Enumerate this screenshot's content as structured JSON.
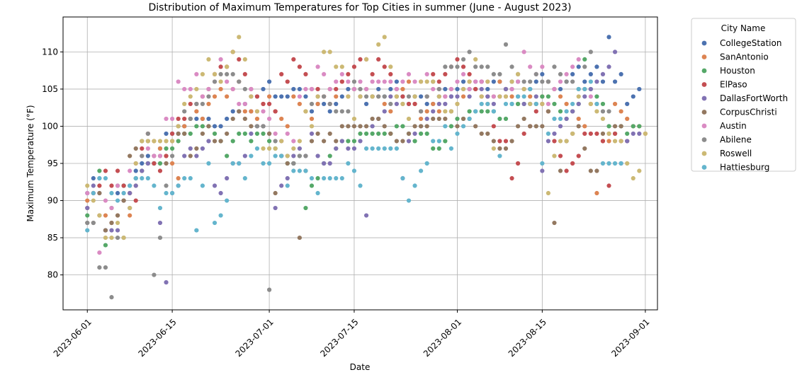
{
  "chart_data": {
    "type": "scatter",
    "title": "Distribution of Maximum Temperatures for Top Cities in summer (June - August 2023)",
    "xlabel": "Date",
    "ylabel": "Maximum Temperature (°F)",
    "xlim": [
      "2023-05-28",
      "2023-09-03"
    ],
    "ylim": [
      75.3,
      114.7
    ],
    "x_ticks": [
      "2023-06-01",
      "2023-06-15",
      "2023-07-01",
      "2023-07-15",
      "2023-08-01",
      "2023-08-15",
      "2023-09-01"
    ],
    "y_ticks": [
      80,
      85,
      90,
      95,
      100,
      105,
      110
    ],
    "grid": true,
    "legend": {
      "title": "City Name",
      "placement": "outside-top-right"
    },
    "start_date": "2023-06-01",
    "series": [
      {
        "name": "CollegeStation",
        "color": "#4c72b0",
        "values": [
          91,
          93,
          93,
          86,
          87,
          91,
          92,
          92,
          94,
          95,
          96,
          95,
          97,
          99,
          99,
          99,
          100,
          101,
          101,
          101,
          101,
          100,
          100,
          101,
          102,
          102,
          103,
          102,
          104,
          105,
          106,
          104,
          104,
          104,
          105,
          105,
          104,
          102,
          103,
          103,
          102,
          103,
          104,
          105,
          105,
          104,
          103,
          104,
          105,
          104,
          105,
          106,
          104,
          103,
          104,
          104,
          103,
          103,
          104,
          105,
          104,
          105,
          106,
          105,
          105,
          106,
          105,
          106,
          106,
          105,
          106,
          106,
          105,
          105,
          106,
          107,
          106,
          105,
          105,
          106,
          107,
          108,
          106,
          107,
          108,
          106,
          112,
          106,
          107,
          103,
          104,
          105
        ]
      },
      {
        "name": "SanAntonio",
        "color": "#dd8452",
        "values": [
          90,
          91,
          88,
          88,
          87,
          88,
          90,
          88,
          92,
          94,
          95,
          98,
          97,
          96,
          95,
          93,
          100,
          101,
          102,
          101,
          103,
          104,
          105,
          104,
          105,
          106,
          102,
          102,
          101,
          103,
          104,
          102,
          101,
          100,
          104,
          103,
          102,
          101,
          103,
          104,
          105,
          104,
          106,
          104,
          105,
          104,
          105,
          104,
          104,
          103,
          102,
          104,
          105,
          106,
          103,
          101,
          102,
          103,
          102,
          104,
          105,
          103,
          104,
          106,
          105,
          104,
          103,
          104,
          106,
          105,
          104,
          103,
          105,
          104,
          103,
          104,
          106,
          105,
          104,
          103,
          102,
          101,
          100,
          103,
          91,
          98,
          98,
          103,
          102,
          101,
          100,
          100,
          99
        ]
      },
      {
        "name": "Houston",
        "color": "#55a868",
        "values": [
          88,
          91,
          94,
          84,
          89,
          92,
          92,
          91,
          93,
          94,
          95,
          95,
          95,
          97,
          97,
          98,
          99,
          99,
          100,
          100,
          100,
          99,
          98,
          96,
          98,
          99,
          99,
          98,
          99,
          99,
          98,
          97,
          96,
          95,
          95,
          96,
          89,
          92,
          93,
          95,
          96,
          97,
          98,
          98,
          98,
          99,
          99,
          99,
          99,
          99,
          99,
          100,
          100,
          99,
          98,
          99,
          99,
          97,
          97,
          98,
          100,
          101,
          101,
          102,
          102,
          102,
          102,
          102,
          101,
          101,
          103,
          103,
          103,
          103,
          103,
          104,
          104,
          103,
          102,
          101,
          102,
          103,
          109,
          105,
          104,
          103,
          100,
          99,
          100,
          99,
          100,
          100
        ]
      },
      {
        "name": "ElPaso",
        "color": "#c44e52",
        "values": [
          89,
          91,
          92,
          94,
          92,
          94,
          92,
          91,
          90,
          97,
          99,
          95,
          94,
          96,
          99,
          101,
          101,
          103,
          103,
          104,
          105,
          107,
          108,
          108,
          110,
          109,
          107,
          105,
          104,
          103,
          103,
          102,
          107,
          106,
          109,
          108,
          107,
          105,
          105,
          104,
          103,
          105,
          106,
          107,
          108,
          109,
          109,
          107,
          109,
          108,
          107,
          105,
          104,
          103,
          103,
          102,
          104,
          107,
          106,
          107,
          108,
          109,
          108,
          107,
          105,
          106,
          104,
          100,
          98,
          98,
          93,
          95,
          99,
          100,
          102,
          103,
          102,
          98,
          96,
          94,
          95,
          96,
          99,
          99,
          99,
          98,
          92,
          99,
          98,
          98
        ]
      },
      {
        "name": "DallasFortWorth",
        "color": "#8172b3",
        "values": [
          89,
          92,
          91,
          86,
          86,
          86,
          90,
          91,
          92,
          94,
          95,
          96,
          87,
          79,
          91,
          92,
          96,
          97,
          96,
          97,
          98,
          92,
          91,
          93,
          95,
          95,
          96,
          99,
          100,
          100,
          99,
          89,
          92,
          93,
          96,
          97,
          96,
          99,
          96,
          95,
          95,
          97,
          98,
          97,
          97,
          98,
          88,
          100,
          101,
          102,
          104,
          103,
          93,
          98,
          99,
          100,
          101,
          102,
          103,
          103,
          104,
          104,
          105,
          104,
          106,
          105,
          104,
          103,
          104,
          105,
          105,
          104,
          103,
          103,
          104,
          94,
          98,
          99,
          100,
          101,
          102,
          103,
          104,
          105,
          106,
          107,
          108,
          110,
          95,
          98,
          99,
          99
        ]
      },
      {
        "name": "CorpusChristi",
        "color": "#937860",
        "values": [
          87,
          87,
          91,
          86,
          87,
          88,
          90,
          96,
          97,
          98,
          98,
          96,
          96,
          95,
          98,
          99,
          99,
          96,
          97,
          99,
          100,
          98,
          98,
          99,
          101,
          102,
          101,
          100,
          100,
          100,
          99,
          91,
          96,
          95,
          95,
          85,
          94,
          98,
          99,
          98,
          99,
          98,
          100,
          100,
          100,
          100,
          100,
          101,
          101,
          100,
          99,
          98,
          98,
          99,
          100,
          100,
          100,
          101,
          101,
          101,
          102,
          100,
          101,
          101,
          100,
          99,
          99,
          98,
          97,
          97,
          98,
          100,
          101,
          100,
          100,
          100,
          102,
          87,
          94,
          98,
          99,
          100,
          97,
          94,
          94,
          99,
          99,
          100,
          100
        ]
      },
      {
        "name": "Austin",
        "color": "#da8bc3",
        "values": [
          91,
          91,
          83,
          90,
          89,
          92,
          91,
          94,
          95,
          96,
          97,
          96,
          96,
          101,
          101,
          106,
          105,
          105,
          107,
          104,
          105,
          106,
          109,
          106,
          105,
          103,
          103,
          105,
          102,
          102,
          101,
          99,
          98,
          99,
          98,
          104,
          105,
          105,
          108,
          107,
          105,
          106,
          107,
          106,
          105,
          106,
          105,
          106,
          106,
          106,
          106,
          105,
          106,
          107,
          106,
          106,
          107,
          105,
          105,
          104,
          105,
          106,
          107,
          105,
          106,
          106,
          106,
          104,
          104,
          104,
          105,
          106,
          110,
          108,
          107,
          108,
          103,
          105,
          106,
          107,
          108,
          109,
          105,
          104
        ]
      },
      {
        "name": "Abilene",
        "color": "#8c8c8c",
        "values": [
          87,
          87,
          81,
          81,
          77,
          85,
          85,
          89,
          93,
          96,
          99,
          80,
          85,
          92,
          96,
          100,
          102,
          101,
          103,
          103,
          104,
          106,
          107,
          107,
          107,
          106,
          105,
          104,
          100,
          100,
          78,
          98,
          96,
          96,
          95,
          96,
          96,
          103,
          104,
          104,
          103,
          102,
          102,
          102,
          106,
          105,
          104,
          104,
          104,
          104,
          103,
          104,
          103,
          104,
          104,
          102,
          104,
          106,
          105,
          108,
          108,
          108,
          109,
          110,
          108,
          108,
          108,
          107,
          107,
          111,
          108,
          107,
          106,
          106,
          107,
          106,
          106,
          108,
          107,
          106,
          106,
          105,
          108,
          110,
          103,
          102,
          102
        ]
      },
      {
        "name": "Roswell",
        "color": "#ccb974",
        "values": [
          92,
          90,
          88,
          85,
          85,
          87,
          85,
          89,
          95,
          98,
          98,
          98,
          98,
          98,
          98,
          100,
          103,
          104,
          105,
          107,
          109,
          107,
          106,
          108,
          110,
          112,
          109,
          104,
          102,
          97,
          97,
          97,
          98,
          96,
          97,
          98,
          102,
          100,
          104,
          110,
          110,
          108,
          108,
          104,
          101,
          104,
          109,
          104,
          111,
          112,
          108,
          104,
          103,
          101,
          104,
          106,
          106,
          106,
          104,
          102,
          102,
          103,
          105,
          106,
          109,
          104,
          106,
          97,
          104,
          104,
          106,
          107,
          105,
          103,
          103,
          103,
          91,
          96,
          98,
          98,
          99,
          104,
          105,
          103,
          102,
          101,
          99,
          98,
          98,
          95,
          93,
          94,
          99
        ]
      },
      {
        "name": "Hattiesburg",
        "color": "#64b5cd",
        "values": [
          86,
          91,
          93,
          93,
          91,
          90,
          91,
          92,
          93,
          93,
          93,
          92,
          89,
          91,
          91,
          92,
          93,
          93,
          86,
          92,
          95,
          87,
          88,
          90,
          95,
          95,
          93,
          96,
          97,
          95,
          95,
          96,
          96,
          92,
          94,
          94,
          94,
          93,
          91,
          93,
          93,
          93,
          93,
          95,
          94,
          92,
          97,
          97,
          97,
          97,
          97,
          97,
          93,
          90,
          92,
          94,
          95,
          98,
          98,
          100,
          97,
          99,
          100,
          101,
          102,
          103,
          103,
          102,
          96,
          103,
          103,
          104,
          104,
          105,
          103,
          95,
          99,
          101,
          101,
          102,
          103,
          105,
          105,
          106,
          103,
          95,
          95,
          95,
          95
        ]
      }
    ]
  }
}
